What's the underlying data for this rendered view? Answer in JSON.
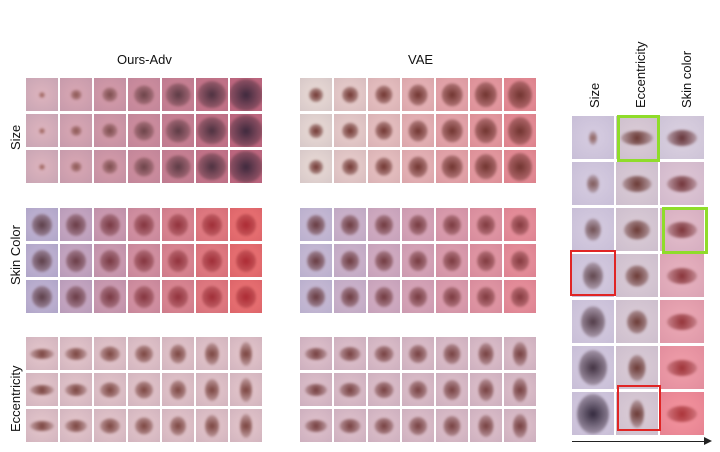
{
  "headers": {
    "ours_adv": "Ours-Adv",
    "vae": "VAE"
  },
  "row_labels": {
    "size": "Size",
    "skin_color": "Skin Color",
    "eccentricity": "Eccentricity"
  },
  "right_panel": {
    "col_labels": [
      "Size",
      "Eccentricity",
      "Skin color"
    ]
  },
  "colors": {
    "green_highlight": "#8fdc2a",
    "red_highlight": "#e02525"
  }
}
